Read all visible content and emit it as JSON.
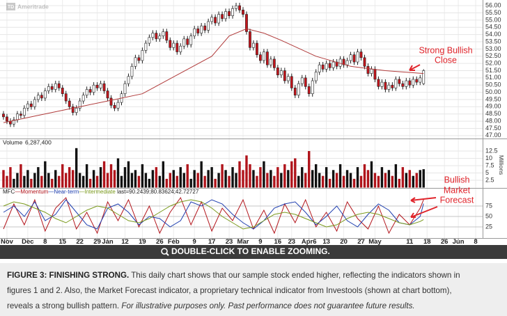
{
  "logo": {
    "mark": "TD",
    "text": "Ameritrade"
  },
  "chart_data": [
    {
      "type": "candlestick",
      "up_color": "#ffffff",
      "down_color": "#c4151c",
      "outline_color": "#222222",
      "xlim": [
        -1,
        138
      ],
      "ylim": [
        46.8,
        56.2
      ],
      "grid": true,
      "yticks": [
        {
          "value": 47,
          "label": "47.00"
        },
        {
          "value": 47.5,
          "label": "47.50"
        },
        {
          "value": 48,
          "label": "48.00"
        },
        {
          "value": 48.5,
          "label": "48.50"
        },
        {
          "value": 49,
          "label": "49.00"
        },
        {
          "value": 49.5,
          "label": "49.50"
        },
        {
          "value": 50,
          "label": "50.00"
        },
        {
          "value": 50.5,
          "label": "50.50"
        },
        {
          "value": 51,
          "label": "51.00"
        },
        {
          "value": 51.5,
          "label": "51.50"
        },
        {
          "value": 52,
          "label": "52.00"
        },
        {
          "value": 52.5,
          "label": "52.50"
        },
        {
          "value": 53,
          "label": "53.00"
        },
        {
          "value": 53.5,
          "label": "53.50"
        },
        {
          "value": 54,
          "label": "54.00"
        },
        {
          "value": 54.5,
          "label": "54.50"
        },
        {
          "value": 55,
          "label": "55.00"
        },
        {
          "value": 55.5,
          "label": "55.50"
        },
        {
          "value": 56,
          "label": "56.00"
        }
      ],
      "open": [
        48.5,
        48.3,
        48.0,
        47.8,
        48.1,
        48.5,
        48.4,
        48.9,
        49.2,
        49.0,
        49.5,
        49.8,
        49.6,
        50.1,
        50.4,
        50.2,
        50.6,
        50.3,
        49.9,
        49.4,
        49.0,
        48.6,
        48.9,
        49.4,
        49.8,
        50.2,
        50.0,
        50.5,
        50.3,
        50.6,
        50.1,
        49.6,
        49.1,
        48.9,
        49.3,
        49.9,
        50.6,
        51.1,
        51.8,
        52.4,
        52.2,
        52.9,
        53.4,
        53.8,
        54.1,
        53.7,
        53.9,
        54.2,
        53.6,
        53.1,
        53.4,
        52.8,
        53.2,
        53.7,
        53.3,
        53.9,
        54.4,
        54.1,
        54.6,
        54.3,
        54.9,
        55.2,
        54.8,
        55.4,
        55.1,
        55.6,
        55.3,
        55.8,
        56.0,
        55.7,
        55.4,
        54.2,
        53.1,
        53.4,
        52.6,
        52.2,
        52.8,
        51.9,
        52.3,
        51.7,
        51.2,
        51.5,
        50.8,
        51.1,
        50.3,
        49.8,
        50.6,
        51.0,
        50.4,
        49.9,
        50.8,
        51.4,
        51.9,
        51.6,
        52.0,
        51.7,
        52.1,
        51.8,
        52.3,
        51.9,
        52.2,
        52.6,
        52.1,
        52.8,
        52.4,
        51.8,
        51.3,
        51.6,
        50.9,
        50.4,
        50.7,
        50.2,
        50.5,
        50.3,
        50.9,
        50.6,
        50.4,
        50.8,
        50.5,
        50.9,
        50.7,
        50.6
      ],
      "high": [
        48.7,
        48.5,
        48.2,
        48.3,
        48.7,
        48.7,
        49.1,
        49.4,
        49.4,
        49.7,
        50.0,
        50.0,
        50.3,
        50.6,
        50.6,
        50.8,
        50.8,
        50.5,
        50.1,
        49.6,
        49.2,
        49.1,
        49.6,
        50.0,
        50.4,
        50.4,
        50.7,
        50.7,
        50.8,
        50.8,
        50.3,
        49.8,
        49.3,
        49.5,
        50.1,
        50.8,
        51.3,
        52.0,
        52.6,
        52.6,
        53.1,
        53.6,
        54.0,
        54.3,
        54.3,
        54.1,
        54.4,
        54.4,
        53.8,
        53.6,
        53.6,
        53.4,
        53.9,
        53.9,
        54.1,
        54.6,
        54.6,
        54.8,
        54.8,
        55.1,
        55.4,
        55.4,
        55.6,
        55.6,
        55.8,
        55.8,
        56.0,
        56.2,
        56.2,
        55.9,
        55.6,
        54.4,
        53.6,
        53.6,
        52.8,
        53.0,
        53.0,
        52.5,
        52.5,
        51.9,
        51.7,
        51.7,
        51.3,
        51.3,
        50.5,
        50.8,
        51.2,
        51.2,
        50.6,
        51.0,
        51.6,
        52.1,
        52.1,
        52.2,
        52.2,
        52.3,
        52.3,
        52.5,
        52.5,
        52.4,
        52.8,
        52.8,
        53.0,
        53.0,
        52.6,
        52.0,
        51.8,
        51.8,
        51.1,
        50.9,
        50.9,
        50.7,
        50.7,
        51.1,
        51.1,
        50.8,
        51.0,
        51.0,
        51.1,
        51.1,
        51.2,
        51.6
      ],
      "low": [
        48.1,
        47.8,
        47.6,
        47.6,
        47.9,
        48.2,
        48.2,
        48.7,
        48.8,
        48.8,
        49.3,
        49.4,
        49.4,
        49.9,
        50.0,
        50.0,
        50.1,
        49.7,
        49.2,
        48.8,
        48.4,
        48.4,
        48.7,
        49.2,
        49.6,
        49.8,
        49.8,
        50.1,
        50.1,
        49.9,
        49.4,
        48.9,
        48.7,
        48.7,
        49.1,
        49.7,
        50.4,
        50.9,
        51.6,
        52.0,
        52.0,
        52.7,
        53.2,
        53.6,
        53.5,
        53.5,
        53.7,
        53.4,
        52.9,
        52.9,
        52.6,
        52.6,
        53.0,
        53.1,
        53.1,
        53.7,
        53.9,
        53.9,
        54.1,
        54.1,
        54.7,
        54.6,
        54.6,
        54.9,
        54.9,
        55.1,
        55.1,
        55.6,
        55.5,
        55.2,
        54.0,
        52.9,
        52.9,
        52.4,
        52.0,
        52.0,
        51.7,
        51.7,
        51.5,
        51.0,
        51.0,
        50.6,
        50.6,
        50.1,
        49.6,
        49.6,
        50.4,
        50.2,
        49.7,
        49.7,
        50.6,
        51.2,
        51.4,
        51.4,
        51.5,
        51.5,
        51.6,
        51.6,
        51.7,
        51.7,
        52.0,
        51.9,
        51.9,
        52.2,
        51.6,
        51.1,
        51.1,
        50.7,
        50.2,
        50.2,
        50.0,
        50.0,
        50.1,
        50.1,
        50.4,
        50.2,
        50.2,
        50.3,
        50.3,
        50.5,
        50.5,
        50.5
      ],
      "close": [
        48.3,
        48.0,
        47.8,
        48.1,
        48.5,
        48.4,
        48.9,
        49.2,
        49.0,
        49.5,
        49.8,
        49.6,
        50.1,
        50.4,
        50.2,
        50.6,
        50.3,
        49.9,
        49.4,
        49.0,
        48.6,
        48.9,
        49.4,
        49.8,
        50.2,
        50.0,
        50.5,
        50.3,
        50.6,
        50.1,
        49.6,
        49.1,
        48.9,
        49.3,
        49.9,
        50.6,
        51.1,
        51.8,
        52.4,
        52.2,
        52.9,
        53.4,
        53.8,
        54.1,
        53.7,
        53.9,
        54.2,
        53.6,
        53.1,
        53.4,
        52.8,
        53.2,
        53.7,
        53.3,
        53.9,
        54.4,
        54.1,
        54.6,
        54.3,
        54.9,
        55.2,
        54.8,
        55.4,
        55.1,
        55.6,
        55.3,
        55.8,
        56.0,
        55.7,
        55.4,
        54.2,
        53.1,
        53.4,
        52.6,
        52.2,
        52.8,
        51.9,
        52.3,
        51.7,
        51.2,
        51.5,
        50.8,
        51.1,
        50.3,
        49.8,
        50.6,
        51.0,
        50.4,
        49.9,
        50.8,
        51.4,
        51.9,
        51.6,
        52.0,
        51.7,
        52.1,
        51.8,
        52.3,
        51.9,
        52.2,
        52.6,
        52.1,
        52.8,
        52.4,
        51.8,
        51.3,
        51.6,
        50.9,
        50.4,
        50.7,
        50.2,
        50.5,
        50.3,
        50.9,
        50.6,
        50.4,
        50.8,
        50.5,
        50.9,
        50.7,
        51.0,
        51.5
      ],
      "overlay": {
        "type": "line",
        "color": "#b03a3a",
        "x": [
          0,
          10,
          20,
          30,
          40,
          50,
          60,
          65,
          70,
          75,
          80,
          90,
          100,
          110,
          121
        ],
        "values": [
          47.9,
          48.4,
          48.9,
          49.4,
          49.9,
          51.2,
          52.5,
          53.9,
          54.4,
          54.1,
          53.6,
          52.5,
          51.8,
          51.5,
          51.3
        ]
      }
    },
    {
      "type": "bar",
      "label": "Volume",
      "last_label": "6,287,400",
      "axis_label": "Millions",
      "xlim": [
        -1,
        138
      ],
      "ylim": [
        0,
        14
      ],
      "yticks": [
        2.5,
        5,
        7.5,
        10,
        12.5
      ],
      "grid": true,
      "up_color": "#111111",
      "down_color": "#b0141b",
      "values": [
        6,
        4,
        7,
        3,
        5,
        8,
        4,
        6,
        3,
        5,
        7,
        4,
        9,
        5,
        3,
        6,
        4,
        8,
        5,
        7,
        6,
        13.5,
        5,
        4,
        8,
        3,
        6,
        4,
        7,
        9,
        5,
        8,
        6,
        10,
        4,
        7,
        9,
        5,
        6,
        4,
        8,
        5,
        3,
        6,
        7,
        4,
        9,
        3,
        5,
        6,
        4,
        7,
        5,
        8,
        3,
        6,
        5,
        9,
        4,
        6,
        7,
        3,
        5,
        8,
        6,
        4,
        7,
        5,
        9,
        6,
        11,
        8,
        6,
        4,
        7,
        9,
        5,
        6,
        4,
        7,
        5,
        8,
        6,
        9,
        10,
        4,
        7,
        5,
        12.5,
        6,
        8,
        5,
        4,
        7,
        3,
        6,
        5,
        8,
        4,
        6,
        5,
        3,
        7,
        4,
        8,
        6,
        9,
        5,
        4,
        7,
        5,
        6,
        4,
        8,
        3,
        7,
        5,
        6,
        4,
        5,
        6,
        6.2874
      ]
    },
    {
      "type": "line",
      "label": "MFC",
      "separator": "—",
      "last_label": "last=90.2439;80.83624;42.72727",
      "xlim": [
        -1,
        138
      ],
      "ylim": [
        0,
        100
      ],
      "yticks": [
        25,
        50,
        75
      ],
      "grid": true,
      "xticks": [
        {
          "value": 1,
          "label": "Nov"
        },
        {
          "value": 7,
          "label": "Dec"
        },
        {
          "value": 12,
          "label": "8"
        },
        {
          "value": 17,
          "label": "15"
        },
        {
          "value": 22,
          "label": "22"
        },
        {
          "value": 27,
          "label": "29"
        },
        {
          "value": 30,
          "label": "Jan"
        },
        {
          "value": 35,
          "label": "12"
        },
        {
          "value": 40,
          "label": "19"
        },
        {
          "value": 45,
          "label": "26"
        },
        {
          "value": 49,
          "label": "Feb"
        },
        {
          "value": 55,
          "label": "9"
        },
        {
          "value": 60,
          "label": "17"
        },
        {
          "value": 65,
          "label": "23"
        },
        {
          "value": 69,
          "label": "Mar"
        },
        {
          "value": 74,
          "label": "9"
        },
        {
          "value": 79,
          "label": "16"
        },
        {
          "value": 83,
          "label": "23"
        },
        {
          "value": 88,
          "label": "Apr6"
        },
        {
          "value": 93,
          "label": "13"
        },
        {
          "value": 98,
          "label": "20"
        },
        {
          "value": 103,
          "label": "27"
        },
        {
          "value": 107,
          "label": "May"
        },
        {
          "value": 117,
          "label": "11"
        },
        {
          "value": 122,
          "label": "18"
        },
        {
          "value": 127,
          "label": "26"
        },
        {
          "value": 131,
          "label": "Jun"
        },
        {
          "value": 136,
          "label": "8"
        }
      ],
      "x": [
        0,
        3,
        6,
        9,
        12,
        15,
        18,
        21,
        24,
        27,
        30,
        33,
        36,
        39,
        42,
        45,
        48,
        51,
        54,
        57,
        60,
        63,
        66,
        69,
        72,
        75,
        78,
        81,
        84,
        87,
        90,
        93,
        96,
        99,
        102,
        105,
        108,
        111,
        114,
        117,
        120,
        121
      ],
      "series": [
        {
          "name": "Momentum",
          "color": "#b3151c",
          "values": [
            20,
            80,
            30,
            90,
            15,
            70,
            95,
            20,
            60,
            10,
            85,
            40,
            90,
            25,
            75,
            10,
            60,
            95,
            30,
            85,
            15,
            70,
            40,
            90,
            20,
            65,
            10,
            80,
            35,
            90,
            25,
            60,
            15,
            85,
            45,
            20,
            75,
            10,
            55,
            30,
            70,
            90.2439
          ]
        },
        {
          "name": "Near-term",
          "color": "#1f3fb0",
          "values": [
            60,
            75,
            50,
            85,
            40,
            55,
            90,
            60,
            30,
            20,
            70,
            80,
            60,
            30,
            50,
            45,
            25,
            40,
            85,
            75,
            90,
            80,
            55,
            35,
            20,
            40,
            70,
            80,
            85,
            60,
            30,
            50,
            75,
            40,
            25,
            55,
            80,
            65,
            35,
            30,
            50,
            80.83624
          ]
        },
        {
          "name": "Intermediate",
          "color": "#7a9a1c",
          "values": [
            75,
            85,
            80,
            70,
            60,
            45,
            35,
            50,
            65,
            75,
            70,
            55,
            40,
            35,
            45,
            60,
            75,
            85,
            90,
            85,
            70,
            50,
            35,
            20,
            25,
            40,
            55,
            60,
            55,
            45,
            35,
            25,
            30,
            45,
            55,
            60,
            55,
            45,
            35,
            30,
            38,
            42.72727
          ]
        }
      ]
    }
  ],
  "annotations": [
    {
      "lines": [
        "Strong Bullish",
        "Close"
      ]
    },
    {
      "lines": [
        "Bullish",
        "Market",
        "Forecast"
      ]
    }
  ],
  "banner": "DOUBLE-CLICK TO ENABLE ZOOMING.",
  "caption": {
    "heading": "FIGURE 3: FINISHING STRONG.",
    "body": [
      "This daily chart shows that our sample stock ended higher, reflecting the indicators shown in",
      "figures 1 and 2. Also, the Market Forecast indicator, a proprietary technical indicator from Investools (shown at chart bottom),",
      "reveals a strong bullish pattern."
    ],
    "disclaimer": "For illustrative purposes only. Past performance does not guarantee future results."
  }
}
